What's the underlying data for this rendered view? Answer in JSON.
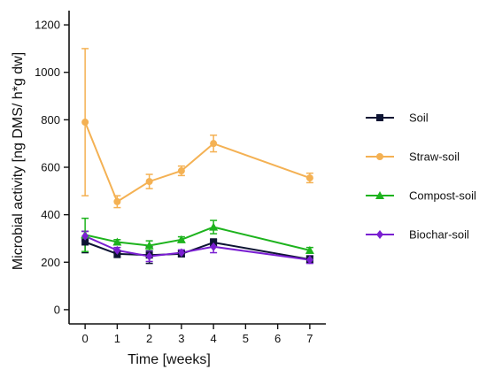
{
  "chart_data": {
    "type": "line",
    "title": "",
    "xlabel": "Time [weeks]",
    "ylabel": "Microbial activity [ng DMS/ h*g dw]",
    "x": [
      0,
      1,
      2,
      3,
      4,
      7
    ],
    "xticks": [
      "0",
      "1",
      "2",
      "3",
      "4",
      "5",
      "6",
      "7"
    ],
    "xlim": [
      -0.5,
      7.5
    ],
    "yticks": [
      "0",
      "200",
      "400",
      "600",
      "800",
      "1000",
      "1200"
    ],
    "ylim": [
      -60,
      1260
    ],
    "grid": false,
    "legend_position": "right",
    "series": [
      {
        "name": "Soil",
        "marker": "square",
        "color": "#0d1433",
        "values": [
          285,
          235,
          230,
          235,
          283,
          212
        ],
        "errors": [
          45,
          15,
          35,
          12,
          15,
          15
        ]
      },
      {
        "name": "Straw-soil",
        "marker": "circle",
        "color": "#f4b153",
        "values": [
          790,
          455,
          540,
          585,
          700,
          555
        ],
        "errors": [
          310,
          25,
          30,
          20,
          35,
          20
        ]
      },
      {
        "name": "Compost-soil",
        "marker": "triangle",
        "color": "#1db31d",
        "values": [
          315,
          285,
          270,
          295,
          348,
          250
        ],
        "errors": [
          70,
          10,
          20,
          12,
          28,
          12
        ]
      },
      {
        "name": "Biochar-soil",
        "marker": "diamond",
        "color": "#7a1fd1",
        "values": [
          310,
          250,
          225,
          240,
          265,
          210
        ],
        "errors": [
          20,
          12,
          22,
          12,
          25,
          15
        ]
      }
    ]
  }
}
